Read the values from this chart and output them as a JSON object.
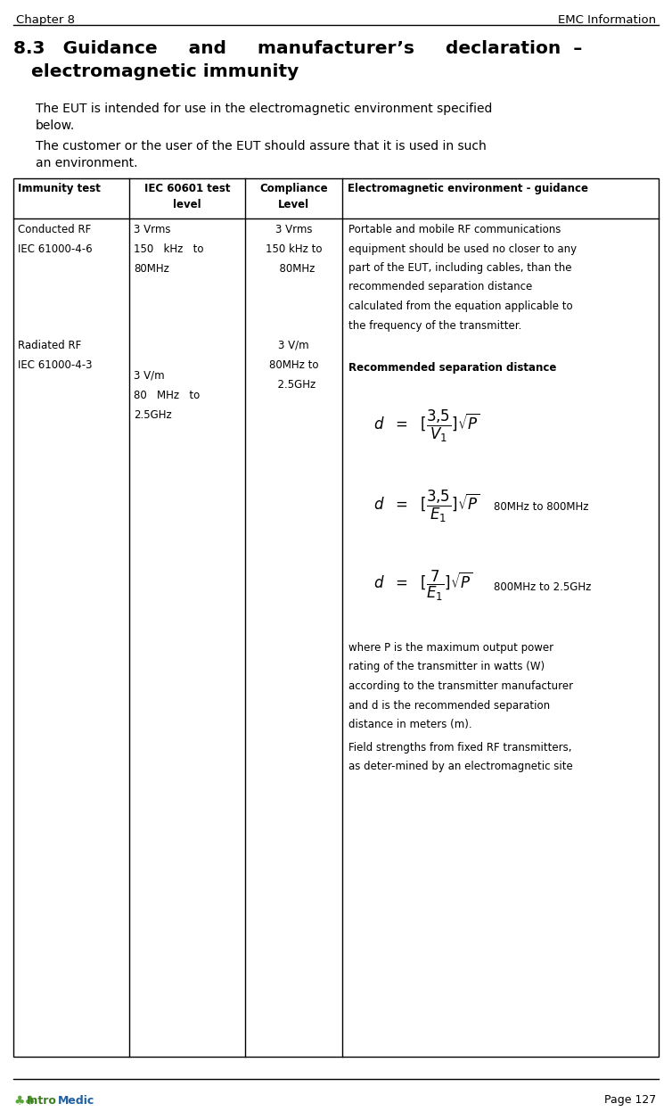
{
  "page_title_left": "Chapter 8",
  "page_title_right": "EMC Information",
  "col_headers": [
    "Immunity test",
    "IEC 60601 test\nlevel",
    "Compliance\nLevel",
    "Electromagnetic environment - guidance"
  ],
  "footer_page": "Page 127",
  "bg_color": "#ffffff",
  "line_color": "#000000",
  "text_color": "#000000",
  "logo_green_dark": "#4a7c2f",
  "logo_green_light": "#8dc63f",
  "logo_blue": "#2b6cb0"
}
